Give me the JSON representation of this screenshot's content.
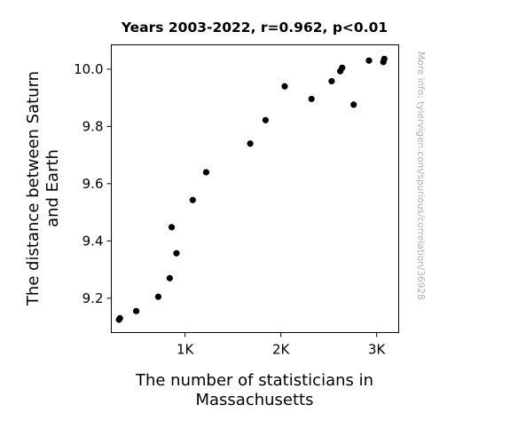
{
  "chart_data": {
    "type": "scatter",
    "title": "Years 2003-2022, r=0.962, p<0.01",
    "xlabel_lines": [
      "The number of statisticians in",
      "Massachusetts"
    ],
    "ylabel_lines": [
      "The distance between Saturn",
      "and Earth"
    ],
    "watermark": "More info: tylervigen.com/spurious/correlation/36928",
    "xlim": [
      230,
      3230
    ],
    "ylim": [
      9.08,
      10.085
    ],
    "xticks": [
      {
        "value": 1000,
        "label": "1K"
      },
      {
        "value": 2000,
        "label": "2K"
      },
      {
        "value": 3000,
        "label": "3K"
      }
    ],
    "yticks": [
      {
        "value": 9.2,
        "label": "9.2"
      },
      {
        "value": 9.4,
        "label": "9.4"
      },
      {
        "value": 9.6,
        "label": "9.6"
      },
      {
        "value": 9.8,
        "label": "9.8"
      },
      {
        "value": 10.0,
        "label": "10.0"
      }
    ],
    "grid": false,
    "marker_color": "#000000",
    "points": [
      {
        "x": 310,
        "y": 9.125
      },
      {
        "x": 320,
        "y": 9.13
      },
      {
        "x": 490,
        "y": 9.155
      },
      {
        "x": 720,
        "y": 9.205
      },
      {
        "x": 840,
        "y": 9.27
      },
      {
        "x": 860,
        "y": 9.448
      },
      {
        "x": 910,
        "y": 9.357
      },
      {
        "x": 1080,
        "y": 9.543
      },
      {
        "x": 1220,
        "y": 9.64
      },
      {
        "x": 1680,
        "y": 9.74
      },
      {
        "x": 1840,
        "y": 9.822
      },
      {
        "x": 2040,
        "y": 9.94
      },
      {
        "x": 2320,
        "y": 9.896
      },
      {
        "x": 2530,
        "y": 9.958
      },
      {
        "x": 2620,
        "y": 9.993
      },
      {
        "x": 2640,
        "y": 10.005
      },
      {
        "x": 2760,
        "y": 9.876
      },
      {
        "x": 2920,
        "y": 10.03
      },
      {
        "x": 3070,
        "y": 10.025
      },
      {
        "x": 3080,
        "y": 10.036
      }
    ]
  }
}
